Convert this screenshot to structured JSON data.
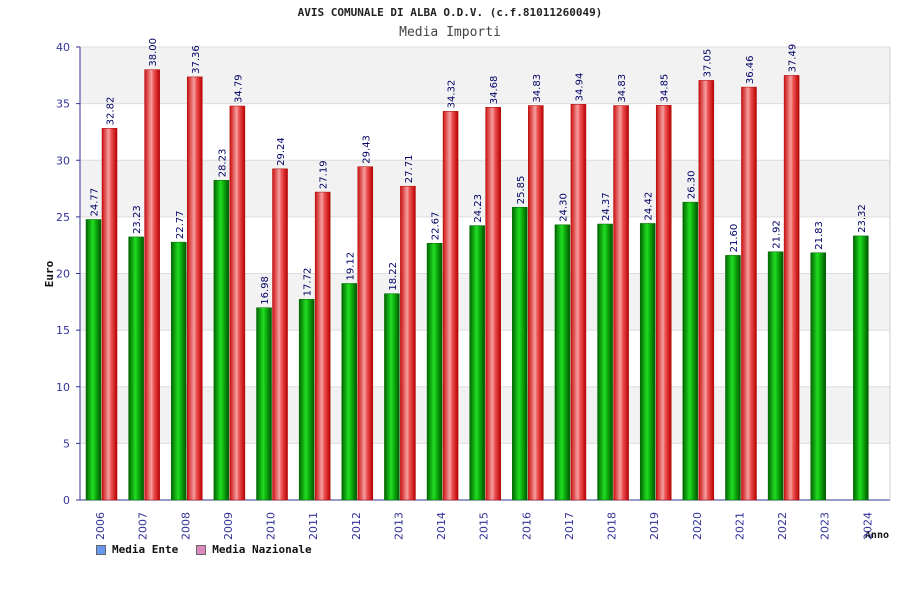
{
  "chart_data": {
    "type": "bar",
    "title": "AVIS COMUNALE DI ALBA O.D.V. (c.f.81011260049)",
    "subtitle": "Media Importi",
    "xlabel": "Anno",
    "ylabel": "Euro",
    "ylim": [
      0,
      40
    ],
    "yticks": [
      "0",
      "5",
      "10",
      "15",
      "20",
      "25",
      "30",
      "35",
      "40"
    ],
    "grid": true,
    "legend_position": "bottom-left",
    "categories": [
      "2006",
      "2007",
      "2008",
      "2009",
      "2010",
      "2011",
      "2012",
      "2013",
      "2014",
      "2015",
      "2016",
      "2017",
      "2018",
      "2019",
      "2020",
      "2021",
      "2022",
      "2023",
      "2024"
    ],
    "series": [
      {
        "name": "Media Ente",
        "color": "#00aa00",
        "legend_color": "#6699ee",
        "values": [
          24.77,
          23.23,
          22.77,
          28.23,
          16.98,
          17.72,
          19.12,
          18.22,
          22.67,
          24.23,
          25.85,
          24.3,
          24.37,
          24.42,
          26.3,
          21.6,
          21.92,
          21.83,
          23.32
        ],
        "labels": [
          "24.77",
          "23.23",
          "22.77",
          "28.23",
          "16.98",
          "17.72",
          "19.12",
          "18.22",
          "22.67",
          "24.23",
          "25.85",
          "24.30",
          "24.37",
          "24.42",
          "26.30",
          "21.60",
          "21.92",
          "21.83",
          "23.32"
        ]
      },
      {
        "name": "Media Nazionale",
        "color": "#ee2222",
        "legend_color": "#dd88bb",
        "values": [
          32.82,
          38.0,
          37.36,
          34.79,
          29.24,
          27.19,
          29.43,
          27.71,
          34.32,
          34.68,
          34.83,
          34.94,
          34.83,
          34.85,
          37.05,
          36.46,
          37.49,
          null,
          null
        ],
        "labels": [
          "32.82",
          "38.00",
          "37.36",
          "34.79",
          "29.24",
          "27.19",
          "29.43",
          "27.71",
          "34.32",
          "34.68",
          "34.83",
          "34.94",
          "34.83",
          "34.85",
          "37.05",
          "36.46",
          "37.49",
          null,
          null
        ]
      }
    ]
  },
  "colors": {
    "axis": "#333399",
    "band_alt": "#f2f2f2",
    "grid": "#dddddd",
    "label": "#000066"
  }
}
